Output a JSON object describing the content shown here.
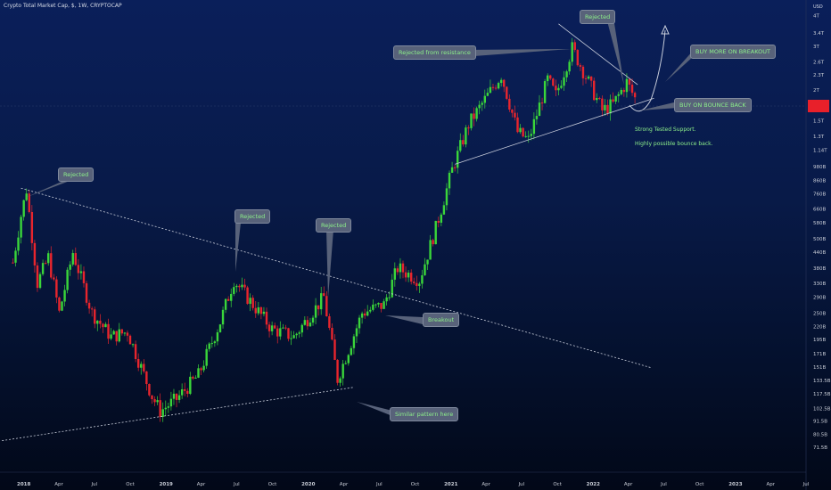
{
  "header": {
    "title": "Crypto Total Market Cap, $, 1W, CRYPTOCAP"
  },
  "currency": "USD",
  "annotations": {
    "rejected_top": "Rejected",
    "rejected_resistance": "Rejected from resistance",
    "buy_breakout": "BUY MORE ON BREAKOUT",
    "buy_bounce": "BUY ON BOUNCE BACK",
    "support_line1": "Strong Tested Support.",
    "support_line2": "Highly possible bounce back.",
    "rejected_2018": "Rejected",
    "rejected_2019": "Rejected",
    "rejected_2020": "Rejected",
    "breakout": "Breakout",
    "similar_pattern": "Similar pattern here"
  },
  "colors": {
    "up": "#3ad63a",
    "down": "#e8252d",
    "price_tag": "#e8202a",
    "label_text": "#8df08a"
  },
  "chart_data": {
    "type": "candlestick",
    "title": "Crypto Total Market Cap, $, 1W, CRYPTOCAP",
    "y_axis_unit": "USD",
    "y_ticks": [
      "4T",
      "3.4T",
      "3T",
      "2.6T",
      "2.3T",
      "2T",
      "1.5T",
      "1.3T",
      "1.14T",
      "980B",
      "860B",
      "760B",
      "660B",
      "580B",
      "500B",
      "440B",
      "380B",
      "330B",
      "290B",
      "250B",
      "220B",
      "195B",
      "171B",
      "151B",
      "133.5B",
      "117.5B",
      "102.5B",
      "91.5B",
      "80.5B",
      "71.5B"
    ],
    "x_ticks": [
      "2018",
      "Apr",
      "Jul",
      "Oct",
      "2019",
      "Apr",
      "Jul",
      "Oct",
      "2020",
      "Apr",
      "Jul",
      "Oct",
      "2021",
      "Apr",
      "Jul",
      "Oct",
      "2022",
      "Apr",
      "Jul",
      "Oct",
      "2023",
      "Apr",
      "Jul"
    ],
    "bold_x_ticks": [
      "2018",
      "2019",
      "2020",
      "2021",
      "2022",
      "2023"
    ],
    "y_log_scale": true,
    "x_range": [
      "2017-11",
      "2023-07"
    ],
    "y_range_usd": [
      68000000000,
      4400000000000
    ],
    "path_usd": [
      [
        "2017-12-04",
        400000000000
      ],
      [
        "2017-12-25",
        620000000000
      ],
      [
        "2018-01-08",
        790000000000
      ],
      [
        "2018-02-05",
        330000000000
      ],
      [
        "2018-03-05",
        420000000000
      ],
      [
        "2018-04-02",
        250000000000
      ],
      [
        "2018-05-07",
        440000000000
      ],
      [
        "2018-06-25",
        250000000000
      ],
      [
        "2018-08-13",
        200000000000
      ],
      [
        "2018-09-24",
        210000000000
      ],
      [
        "2018-11-26",
        115000000000
      ],
      [
        "2018-12-17",
        100000000000
      ],
      [
        "2019-01-28",
        112000000000
      ],
      [
        "2019-03-25",
        140000000000
      ],
      [
        "2019-05-20",
        230000000000
      ],
      [
        "2019-06-24",
        340000000000
      ],
      [
        "2019-08-12",
        270000000000
      ],
      [
        "2019-09-30",
        215000000000
      ],
      [
        "2019-11-25",
        200000000000
      ],
      [
        "2020-02-10",
        290000000000
      ],
      [
        "2020-03-16",
        135000000000
      ],
      [
        "2020-05-18",
        250000000000
      ],
      [
        "2020-07-13",
        270000000000
      ],
      [
        "2020-08-17",
        380000000000
      ],
      [
        "2020-10-12",
        340000000000
      ],
      [
        "2020-11-23",
        550000000000
      ],
      [
        "2021-01-04",
        950000000000
      ],
      [
        "2021-02-15",
        1450000000000
      ],
      [
        "2021-05-10",
        2300000000000
      ],
      [
        "2021-06-21",
        1350000000000
      ],
      [
        "2021-07-19",
        1250000000000
      ],
      [
        "2021-09-06",
        2200000000000
      ],
      [
        "2021-09-27",
        1900000000000
      ],
      [
        "2021-11-08",
        2950000000000
      ],
      [
        "2021-12-20",
        2150000000000
      ],
      [
        "2022-01-24",
        1650000000000
      ],
      [
        "2022-02-21",
        1750000000000
      ],
      [
        "2022-03-28",
        2150000000000
      ],
      [
        "2022-04-18",
        1850000000000
      ]
    ],
    "trendlines_usd": [
      {
        "name": "long-term resistance",
        "from": [
          "2017-12-25",
          800000000000
        ],
        "to": [
          "2022-05-30",
          150000000000
        ]
      },
      {
        "name": "2018-2020 support",
        "from": [
          "2017-11-06",
          76000000000
        ],
        "to": [
          "2020-04-27",
          125000000000
        ]
      },
      {
        "name": "2021 support",
        "from": [
          "2021-01-11",
          1000000000000
        ],
        "to": [
          "2022-06-06",
          1850000000000
        ]
      },
      {
        "name": "2021 resistance",
        "from": [
          "2021-10-04",
          3700000000000
        ],
        "to": [
          "2022-04-25",
          2100000000000
        ]
      }
    ]
  }
}
